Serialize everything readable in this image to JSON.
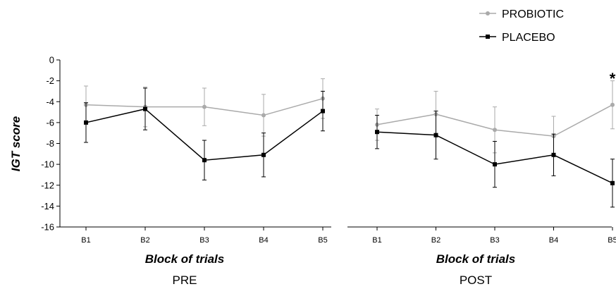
{
  "legend": {
    "placement": "top-right",
    "entries": [
      {
        "label": "PROBIOTIC",
        "color": "#aaaaaa",
        "marker": "circle"
      },
      {
        "label": "PLACEBO",
        "color": "#000000",
        "marker": "square"
      }
    ]
  },
  "chart_data": [
    {
      "type": "line",
      "title": "PRE",
      "xlabel": "Block of trials",
      "ylabel": "IGT score",
      "categories": [
        "B1",
        "B2",
        "B3",
        "B4",
        "B5"
      ],
      "ylim": [
        -16,
        0
      ],
      "yticks": [
        0,
        -2,
        -4,
        -6,
        -8,
        -10,
        -12,
        -14,
        -16
      ],
      "yticks_labels": [
        "0",
        "-2",
        "-4",
        "-6",
        "-8",
        "-10",
        "-12",
        "-14",
        "-16"
      ],
      "grid": false,
      "error_bars": true,
      "series": [
        {
          "name": "PROBIOTIC",
          "color": "#aaaaaa",
          "marker": "circle",
          "values": [
            -4.3,
            -4.5,
            -4.5,
            -5.3,
            -3.7
          ],
          "errors": [
            1.8,
            1.9,
            1.8,
            2.0,
            1.9
          ]
        },
        {
          "name": "PLACEBO",
          "color": "#000000",
          "marker": "square",
          "values": [
            -6.0,
            -4.7,
            -9.6,
            -9.1,
            -4.9
          ],
          "errors": [
            1.9,
            2.0,
            1.9,
            2.1,
            1.9
          ]
        }
      ],
      "annotations": []
    },
    {
      "type": "line",
      "title": "POST",
      "xlabel": "Block of trials",
      "ylabel": "",
      "categories": [
        "B1",
        "B2",
        "B3",
        "B4",
        "B5"
      ],
      "ylim": [
        -16,
        0
      ],
      "grid": false,
      "error_bars": true,
      "series": [
        {
          "name": "PROBIOTIC",
          "color": "#aaaaaa",
          "marker": "circle",
          "values": [
            -6.2,
            -5.2,
            -6.7,
            -7.3,
            -4.3
          ],
          "errors": [
            1.5,
            2.2,
            2.2,
            1.9,
            2.3
          ]
        },
        {
          "name": "PLACEBO",
          "color": "#000000",
          "marker": "square",
          "values": [
            -6.9,
            -7.2,
            -10.0,
            -9.1,
            -11.8
          ],
          "errors": [
            1.6,
            2.3,
            2.2,
            2.0,
            2.3
          ]
        }
      ],
      "annotations": [
        {
          "text": "*",
          "category": "B5",
          "y": -1.2
        }
      ]
    }
  ]
}
